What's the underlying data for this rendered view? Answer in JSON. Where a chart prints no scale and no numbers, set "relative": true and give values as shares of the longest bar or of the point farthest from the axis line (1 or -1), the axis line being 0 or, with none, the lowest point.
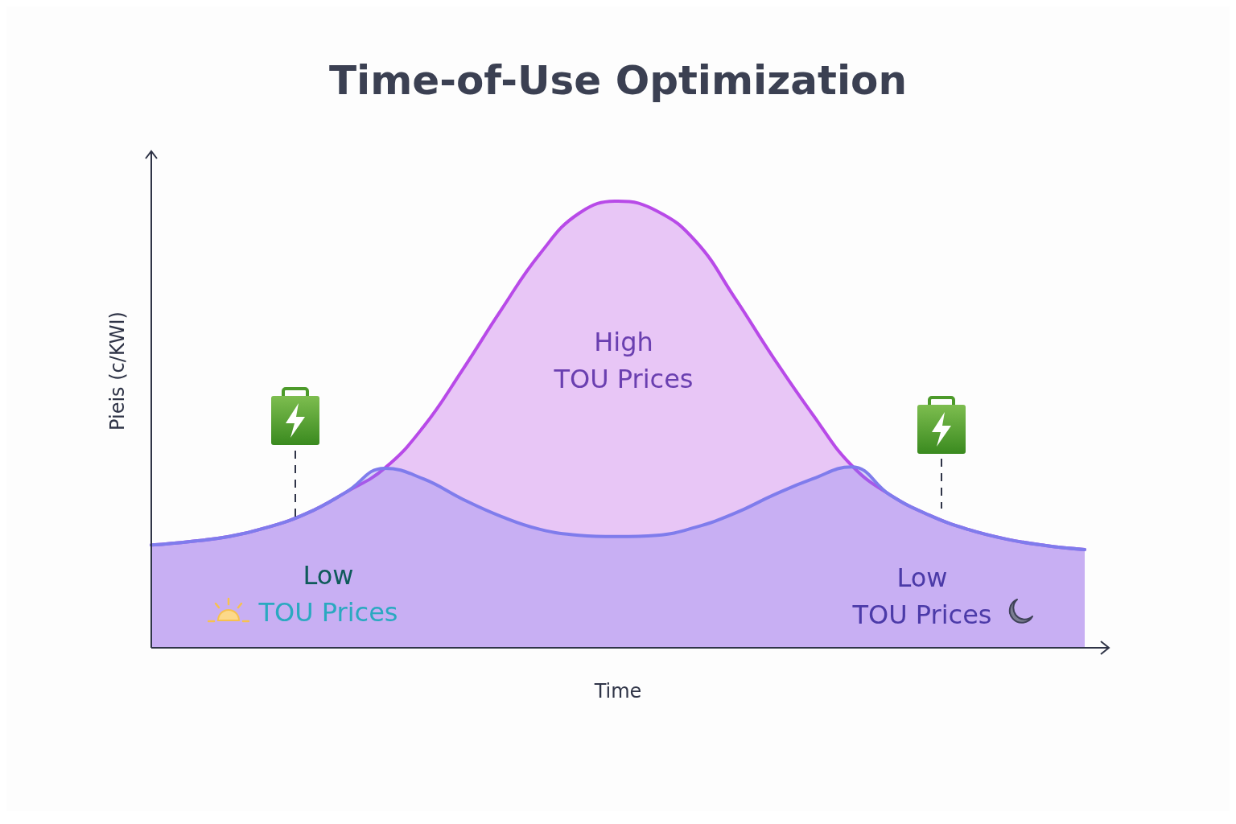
{
  "chart_data": {
    "type": "area",
    "title": "Time-of-Use Optimization",
    "xlabel": "Time",
    "ylabel": "Pieis (c/KWI)",
    "relative": true,
    "grid": false,
    "categories": [
      null,
      null,
      null,
      null,
      null,
      null,
      null,
      null,
      null,
      null,
      null,
      null,
      null,
      null,
      null,
      null,
      null,
      null,
      null,
      null,
      null,
      null,
      null,
      null,
      null
    ],
    "series": [
      {
        "color": "#b84ae8",
        "values": [
          0.23,
          0.238,
          0.249,
          0.27,
          0.301,
          0.348,
          0.402,
          0.495,
          0.622,
          0.757,
          0.883,
          0.973,
          1,
          0.978,
          0.91,
          0.784,
          0.649,
          0.523,
          0.409,
          0.342,
          0.297,
          0.265,
          0.243,
          0.229,
          0.22
        ]
      },
      {
        "color": "#7f7cec",
        "values": [
          0.23,
          0.238,
          0.249,
          0.27,
          0.301,
          0.348,
          0.402,
          0.378,
          0.333,
          0.294,
          0.265,
          0.252,
          0.249,
          0.252,
          0.27,
          0.301,
          0.342,
          0.378,
          0.405,
          0.342,
          0.297,
          0.265,
          0.243,
          0.229,
          0.22
        ]
      }
    ],
    "annotations": [
      "High\nTOU Prices",
      "Low\nTOU Prices",
      "Low\nTOU Prices"
    ]
  }
}
